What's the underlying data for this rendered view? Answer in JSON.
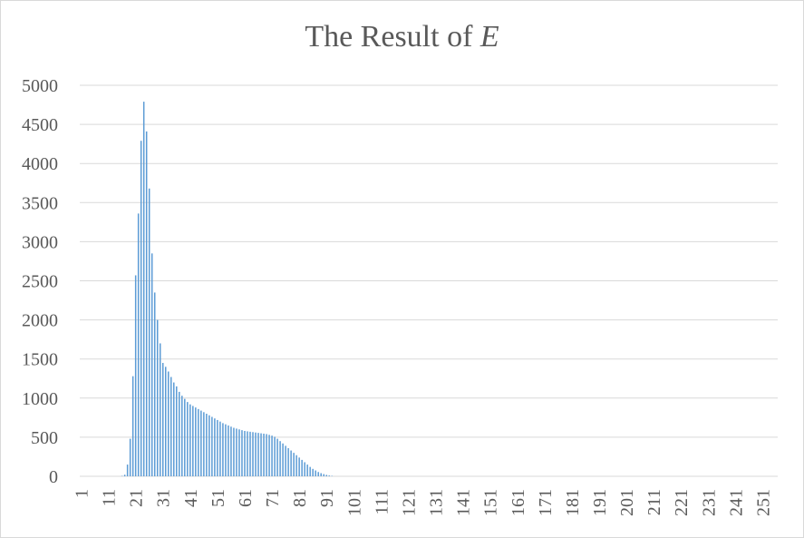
{
  "chart_data": {
    "type": "bar",
    "title": "The Result of ",
    "title_variable": "E",
    "xlabel": "",
    "ylabel": "",
    "ylim": [
      0,
      5000
    ],
    "yticks": [
      0,
      500,
      1000,
      1500,
      2000,
      2500,
      3000,
      3500,
      4000,
      4500,
      5000
    ],
    "x_range": [
      1,
      256
    ],
    "xticks": [
      1,
      11,
      21,
      31,
      41,
      51,
      61,
      71,
      81,
      91,
      101,
      111,
      121,
      131,
      141,
      151,
      161,
      171,
      181,
      191,
      201,
      211,
      221,
      231,
      241,
      251
    ],
    "grid": true,
    "legend": "none",
    "bar_color": "#5b9bd5",
    "categories_start": 1,
    "values": [
      0,
      0,
      0,
      0,
      0,
      0,
      0,
      0,
      0,
      0,
      0,
      0,
      0,
      0,
      0,
      5,
      20,
      150,
      480,
      1280,
      2570,
      3360,
      4290,
      4790,
      4410,
      3680,
      2850,
      2350,
      2000,
      1700,
      1450,
      1400,
      1340,
      1270,
      1200,
      1150,
      1080,
      1030,
      990,
      950,
      920,
      900,
      880,
      860,
      840,
      820,
      800,
      780,
      760,
      740,
      720,
      700,
      680,
      665,
      650,
      635,
      620,
      610,
      600,
      590,
      580,
      575,
      570,
      565,
      560,
      555,
      550,
      545,
      540,
      530,
      520,
      505,
      480,
      450,
      420,
      390,
      360,
      330,
      300,
      270,
      240,
      210,
      180,
      150,
      120,
      95,
      75,
      55,
      40,
      28,
      18,
      10,
      5
    ]
  }
}
